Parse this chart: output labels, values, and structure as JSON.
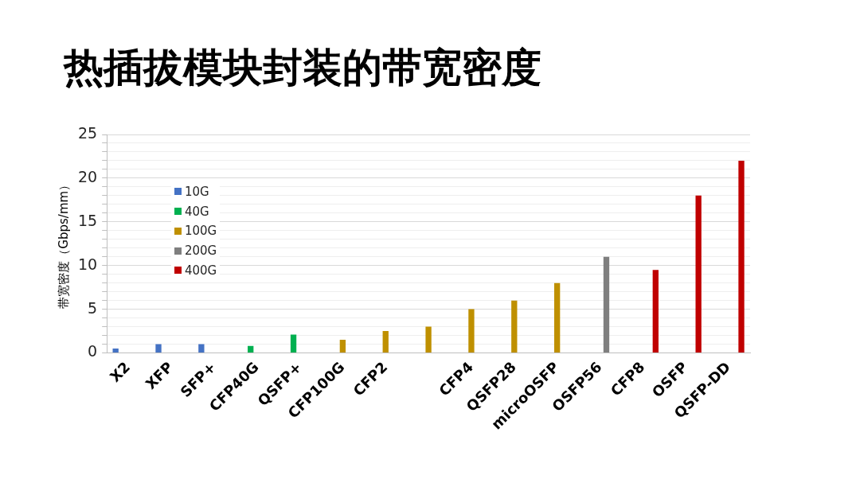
{
  "chart_data": {
    "type": "bar",
    "title": "热插拔模块封装的带宽密度",
    "ylabel": "带宽密度（Gbps/mm）",
    "categories": [
      "X2",
      "XFP",
      "SFP+",
      "CFP40G",
      "QSFP+",
      "CFP100G",
      "CFP2",
      null,
      "CFP4",
      "QSFP28",
      "microOSFP",
      "OSFP56",
      "CFP8",
      "OSFP",
      "QSFP-DD"
    ],
    "series": [
      {
        "name": "10G",
        "color": "#4472c4",
        "values": [
          0.5,
          1,
          1,
          null,
          null,
          null,
          null,
          null,
          null,
          null,
          null,
          null,
          null,
          null,
          null
        ]
      },
      {
        "name": "40G",
        "color": "#00b050",
        "values": [
          null,
          null,
          null,
          0.8,
          2.1,
          null,
          null,
          null,
          null,
          null,
          null,
          null,
          null,
          null,
          null
        ]
      },
      {
        "name": "100G",
        "color": "#bf9000",
        "values": [
          null,
          null,
          null,
          null,
          null,
          1.5,
          2.5,
          3,
          5,
          6,
          8,
          null,
          null,
          null,
          null
        ]
      },
      {
        "name": "200G",
        "color": "#7f7f7f",
        "values": [
          null,
          null,
          null,
          null,
          null,
          null,
          null,
          null,
          null,
          null,
          null,
          11,
          null,
          null,
          null
        ]
      },
      {
        "name": "400G",
        "color": "#c00000",
        "values": [
          null,
          null,
          null,
          null,
          null,
          null,
          null,
          null,
          null,
          null,
          null,
          null,
          9.5,
          18,
          22
        ]
      }
    ],
    "ylim": [
      0,
      25
    ],
    "yticks": [
      0,
      {
        "value": 1,
        "label": null
      },
      {
        "value": 2,
        "label": null
      },
      {
        "value": 3,
        "label": null
      },
      {
        "value": 4,
        "label": null
      },
      5,
      {
        "value": 6,
        "label": null
      },
      {
        "value": 7,
        "label": null
      },
      {
        "value": 8,
        "label": null
      },
      {
        "value": 9,
        "label": null
      },
      10,
      {
        "value": 11,
        "label": null
      },
      {
        "value": 12,
        "label": null
      },
      {
        "value": 13,
        "label": null
      },
      {
        "value": 14,
        "label": null
      },
      15,
      {
        "value": 16,
        "label": null
      },
      {
        "value": 17,
        "label": null
      },
      {
        "value": 18,
        "label": null
      },
      {
        "value": 19,
        "label": null
      },
      20,
      {
        "value": 21,
        "label": null
      },
      {
        "value": 22,
        "label": null
      },
      {
        "value": 23,
        "label": null
      },
      {
        "value": 24,
        "label": null
      },
      25
    ],
    "grid": "y",
    "legend": "top left"
  }
}
